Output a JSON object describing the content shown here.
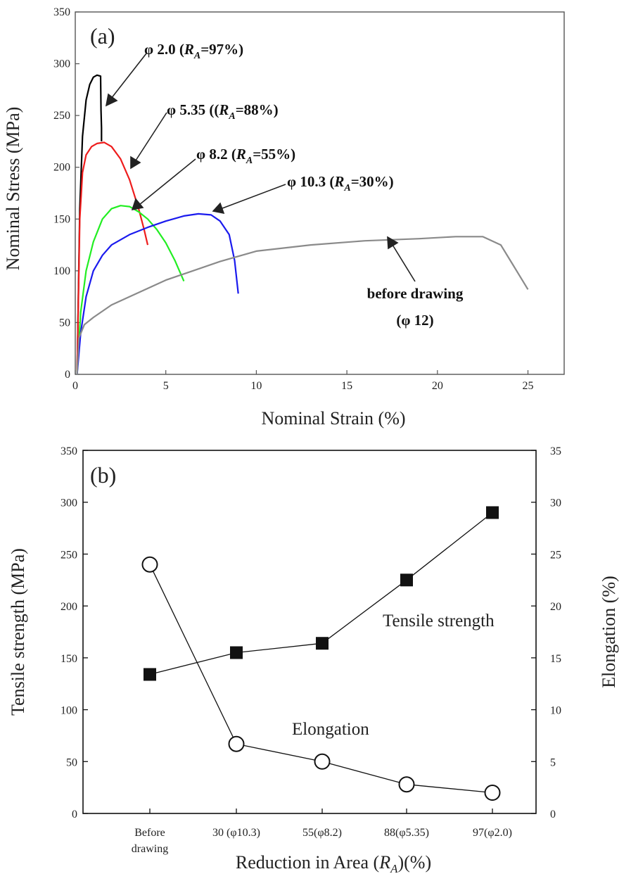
{
  "chart_data": [
    {
      "panel": "(a)",
      "type": "line",
      "xlabel": "Nominal Strain (%)",
      "ylabel": "Nominal Stress (MPa)",
      "xlim": [
        0,
        27
      ],
      "ylim": [
        0,
        350
      ],
      "xticks": [
        0,
        5,
        10,
        15,
        20,
        25
      ],
      "yticks": [
        0,
        50,
        100,
        150,
        200,
        250,
        300,
        350
      ],
      "grid": false,
      "series": [
        {
          "name": "φ 2.0 (R_A=97%)",
          "color": "#000000",
          "x": [
            0.1,
            0.25,
            0.4,
            0.6,
            0.8,
            1.0,
            1.2,
            1.4,
            1.42,
            1.45,
            1.45
          ],
          "y": [
            0,
            160,
            230,
            265,
            280,
            287,
            289,
            288,
            255,
            238,
            225
          ]
        },
        {
          "name": "φ 5.35 ((R_A=88%)",
          "color": "#ee1c1c",
          "x": [
            0.1,
            0.25,
            0.4,
            0.6,
            0.9,
            1.2,
            1.6,
            2.0,
            2.5,
            3.0,
            3.5,
            3.8,
            4.0
          ],
          "y": [
            0,
            150,
            195,
            212,
            220,
            223,
            224,
            220,
            208,
            188,
            160,
            140,
            125
          ]
        },
        {
          "name": "φ 8.2 (R_A=55%)",
          "color": "#22ee22",
          "x": [
            0.1,
            0.3,
            0.6,
            1.0,
            1.5,
            2.0,
            2.5,
            3.0,
            3.5,
            4.0,
            4.5,
            5.0,
            5.5,
            6.0
          ],
          "y": [
            0,
            60,
            100,
            128,
            150,
            160,
            163,
            162,
            157,
            150,
            140,
            127,
            110,
            90
          ]
        },
        {
          "name": "φ 10.3 (R_A=30%)",
          "color": "#1a1aee",
          "x": [
            0.1,
            0.3,
            0.6,
            1.0,
            1.5,
            2.0,
            3.0,
            4.0,
            5.0,
            6.0,
            6.8,
            7.5,
            8.0,
            8.5,
            8.8,
            9.0
          ],
          "y": [
            0,
            40,
            75,
            100,
            115,
            125,
            135,
            142,
            148,
            153,
            155,
            154,
            148,
            135,
            110,
            78
          ]
        },
        {
          "name": "before drawing (φ 12)",
          "color": "#8a8a8a",
          "x": [
            0.1,
            0.2,
            0.5,
            1.0,
            2.0,
            3.0,
            5.0,
            8.0,
            10.0,
            13.0,
            16.0,
            19.0,
            21.0,
            22.5,
            23.5,
            24.2,
            25.0
          ],
          "y": [
            0,
            35,
            48,
            55,
            67,
            75,
            91,
            109,
            119,
            125,
            129,
            131,
            133,
            133,
            125,
            105,
            82
          ]
        }
      ],
      "annotations": [
        {
          "prefix": "φ 2.0 (",
          "r": "R",
          "sub": "A",
          "suffix": "=97%)"
        },
        {
          "prefix": "φ 5.35 ((",
          "r": "R",
          "sub": "A",
          "suffix": "=88%)"
        },
        {
          "prefix": "φ 8.2 (",
          "r": "R",
          "sub": "A",
          "suffix": "=55%)"
        },
        {
          "prefix": "φ 10.3 (",
          "r": "R",
          "sub": "A",
          "suffix": "=30%)"
        },
        {
          "line1": "before drawing",
          "line2": "(φ 12)"
        }
      ]
    },
    {
      "panel": "(b)",
      "type": "line",
      "xlabel_prefix": "Reduction in Area (",
      "xlabel_r": "R",
      "xlabel_sub": "A",
      "xlabel_suffix": ")(%)",
      "ylabel": "Tensile strength (MPa)",
      "y2label": "Elongation (%)",
      "ylim": [
        0,
        350
      ],
      "y2lim": [
        0,
        35
      ],
      "yticks": [
        0,
        50,
        100,
        150,
        200,
        250,
        300,
        350
      ],
      "y2ticks": [
        0,
        5,
        10,
        15,
        20,
        25,
        30,
        35
      ],
      "categories": [
        {
          "line1": "Before",
          "line2": "drawing"
        },
        {
          "line1": "30 (φ10.3)"
        },
        {
          "line1": "55(φ8.2)"
        },
        {
          "line1": "88(φ5.35)"
        },
        {
          "line1": "97(φ2.0)"
        }
      ],
      "series": [
        {
          "name": "Tensile strength",
          "axis": "left",
          "marker": "filled-square",
          "values": [
            134,
            155,
            164,
            225,
            290
          ]
        },
        {
          "name": "Elongation",
          "axis": "right",
          "marker": "open-circle",
          "values": [
            24,
            6.7,
            5.0,
            2.8,
            2.0
          ]
        }
      ]
    }
  ]
}
